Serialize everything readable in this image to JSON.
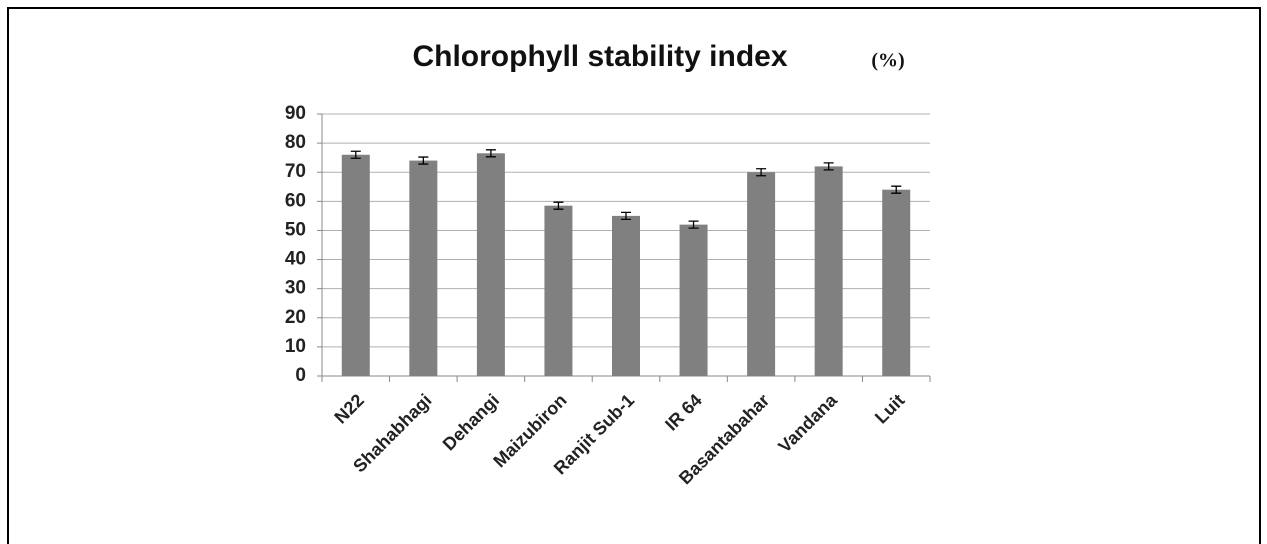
{
  "chart_data": {
    "type": "bar",
    "title": "Chlorophyll stability index",
    "unit_label": "(%)",
    "categories": [
      "N22",
      "Shahabhagi",
      "Dehangi",
      "Maizubiron",
      "Ranjit Sub-1",
      "IR 64",
      "Basantabahar",
      "Vandana",
      "Luit"
    ],
    "values": [
      76,
      74,
      76.5,
      58.5,
      55,
      52,
      70,
      72,
      64
    ],
    "errors": [
      1.2,
      1.2,
      1.2,
      1.2,
      1.2,
      1.2,
      1.2,
      1.2,
      1.2
    ],
    "color": "#808080",
    "ylim": [
      0,
      90
    ],
    "yticks": [
      0,
      10,
      20,
      30,
      40,
      50,
      60,
      70,
      80,
      90
    ],
    "grid": true
  }
}
